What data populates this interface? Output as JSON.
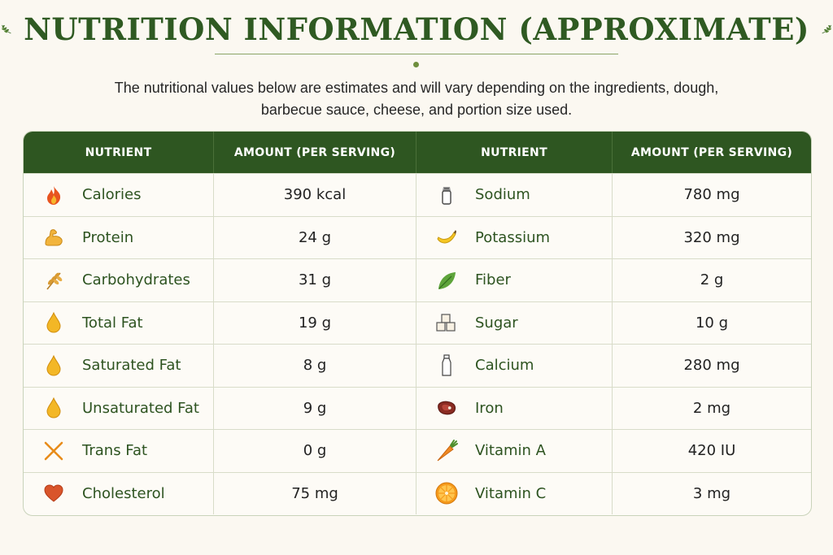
{
  "title": "NUTRITION INFORMATION (APPROXIMATE)",
  "subtitle": "The nutritional values below are estimates and will vary depending on the ingredients, dough, barbecue sauce, cheese, and portion size used.",
  "table": {
    "headers": [
      "NUTRIENT",
      "AMOUNT (PER SERVING)",
      "NUTRIENT",
      "AMOUNT (PER SERVING)"
    ],
    "left": [
      {
        "nutrient": "Calories",
        "amount": "390 kcal",
        "icon": "flame-icon"
      },
      {
        "nutrient": "Protein",
        "amount": "24 g",
        "icon": "flexed-arm-icon"
      },
      {
        "nutrient": "Carbohydrates",
        "amount": "31 g",
        "icon": "wheat-icon"
      },
      {
        "nutrient": "Total Fat",
        "amount": "19 g",
        "icon": "oil-drop-icon"
      },
      {
        "nutrient": "Saturated Fat",
        "amount": "8 g",
        "icon": "oil-drop-icon"
      },
      {
        "nutrient": "Unsaturated Fat",
        "amount": "9 g",
        "icon": "oil-drop-icon"
      },
      {
        "nutrient": "Trans Fat",
        "amount": "0 g",
        "icon": "crossed-x-icon"
      },
      {
        "nutrient": "Cholesterol",
        "amount": "75 mg",
        "icon": "heart-icon"
      }
    ],
    "right": [
      {
        "nutrient": "Sodium",
        "amount": "780 mg",
        "icon": "salt-shaker-icon"
      },
      {
        "nutrient": "Potassium",
        "amount": "320 mg",
        "icon": "banana-icon"
      },
      {
        "nutrient": "Fiber",
        "amount": "2 g",
        "icon": "leaf-icon"
      },
      {
        "nutrient": "Sugar",
        "amount": "10 g",
        "icon": "sugar-cubes-icon"
      },
      {
        "nutrient": "Calcium",
        "amount": "280 mg",
        "icon": "milk-bottle-icon"
      },
      {
        "nutrient": "Iron",
        "amount": "2 mg",
        "icon": "steak-icon"
      },
      {
        "nutrient": "Vitamin A",
        "amount": "420 IU",
        "icon": "carrot-icon"
      },
      {
        "nutrient": "Vitamin C",
        "amount": "3 mg",
        "icon": "orange-slice-icon"
      }
    ]
  },
  "colors": {
    "accent": "#2e5621",
    "label": "#2d5320",
    "background": "#fbf8f1"
  }
}
